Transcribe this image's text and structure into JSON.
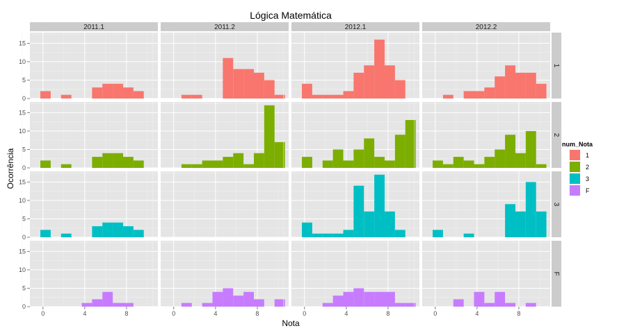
{
  "chart_data": {
    "type": "histogram-facet-grid",
    "title": "Lógica Matemática",
    "xlabel": "Nota",
    "ylabel": "Ocorrência",
    "xlim": [
      -1.25,
      11.0
    ],
    "ylim": [
      0,
      17.9
    ],
    "x_ticks": [
      0,
      4,
      8
    ],
    "y_ticks": [
      0,
      5,
      10,
      15
    ],
    "bin_width": 0.99,
    "bin_starts": [
      -0.25,
      0.74,
      1.73,
      2.72,
      3.71,
      4.7,
      5.69,
      6.68,
      7.67,
      8.66,
      9.65
    ],
    "columns": [
      "2011.1",
      "2011.2",
      "2012.1",
      "2012.2"
    ],
    "rows": [
      "1",
      "2",
      "3",
      "F"
    ],
    "legend": {
      "title": "num_Nota",
      "placement": "right",
      "entries": [
        {
          "label": "1",
          "color": "#F8766D"
        },
        {
          "label": "2",
          "color": "#7CAE00"
        },
        {
          "label": "3",
          "color": "#00BFC4"
        },
        {
          "label": "F",
          "color": "#C77CFF"
        }
      ]
    },
    "panels": {
      "1": {
        "2011.1": [
          2,
          0,
          1,
          0,
          0,
          3,
          4,
          4,
          3,
          2,
          0
        ],
        "2011.2": [
          0,
          1,
          1,
          0,
          0,
          11,
          8,
          8,
          7,
          5,
          1
        ],
        "2012.1": [
          4,
          1,
          1,
          1,
          2,
          7,
          9,
          16,
          9,
          5,
          0
        ],
        "2012.2": [
          0,
          1,
          0,
          2,
          2,
          3,
          6,
          9,
          7,
          7,
          4
        ]
      },
      "2": {
        "2011.1": [
          2,
          0,
          1,
          0,
          0,
          3,
          4,
          4,
          3,
          2,
          0
        ],
        "2011.2": [
          0,
          1,
          1,
          2,
          2,
          3,
          4,
          1,
          4,
          17,
          7
        ],
        "2012.1": [
          3,
          0,
          2,
          5,
          2,
          5,
          8,
          3,
          2,
          9,
          13
        ],
        "2012.2": [
          2,
          1,
          3,
          2,
          1,
          3,
          5,
          9,
          4,
          10,
          1
        ]
      },
      "3": {
        "2011.1": [
          2,
          0,
          1,
          0,
          0,
          3,
          4,
          4,
          3,
          2,
          0
        ],
        "2011.2": [
          0,
          0,
          0,
          0,
          0,
          0,
          0,
          0,
          0,
          0,
          0
        ],
        "2012.1": [
          4,
          1,
          1,
          1,
          2,
          14,
          7,
          17,
          7,
          2,
          0
        ],
        "2012.2": [
          2,
          0,
          0,
          1,
          0,
          0,
          0,
          9,
          7,
          15,
          7
        ]
      },
      "F": {
        "2011.1": [
          0,
          0,
          0,
          0,
          1,
          2,
          4,
          1,
          1,
          0,
          0
        ],
        "2011.2": [
          0,
          1,
          0,
          1,
          4,
          5,
          3,
          4,
          2,
          0,
          2
        ],
        "2012.1": [
          0,
          0,
          1,
          3,
          4,
          5,
          4,
          4,
          4,
          1,
          1
        ],
        "2012.2": [
          0,
          0,
          2,
          0,
          4,
          1,
          4,
          1,
          0,
          1,
          0
        ]
      }
    },
    "background_color": "#E5E5E5",
    "strip_color": "#CCCCCC"
  }
}
